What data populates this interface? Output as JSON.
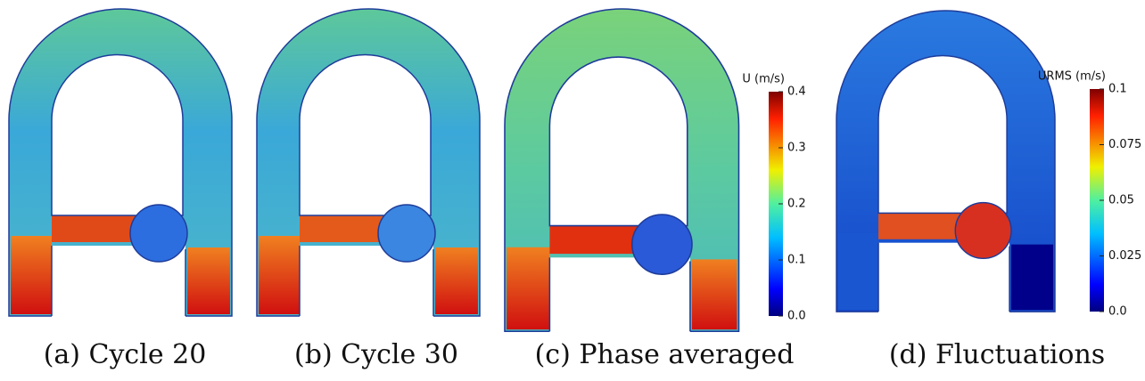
{
  "panels": [
    {
      "caption": "(a) Cycle 20"
    },
    {
      "caption": "(b) Cycle 30"
    },
    {
      "caption": "(c) Phase averaged"
    },
    {
      "caption": "(d) Fluctuations"
    }
  ],
  "colorbars": [
    {
      "title": "U (m/s)",
      "ylim": [
        0,
        0.4
      ],
      "yticks": [
        {
          "value": 0,
          "label": "0.0"
        },
        0.1,
        0.2,
        0.3,
        0.4
      ]
    },
    {
      "title": "URMS (m/s)",
      "ylim": [
        0,
        0.1
      ],
      "yticks": [
        {
          "value": 0,
          "label": "0.0"
        },
        0.025,
        0.05,
        0.075,
        0.1
      ]
    }
  ]
}
